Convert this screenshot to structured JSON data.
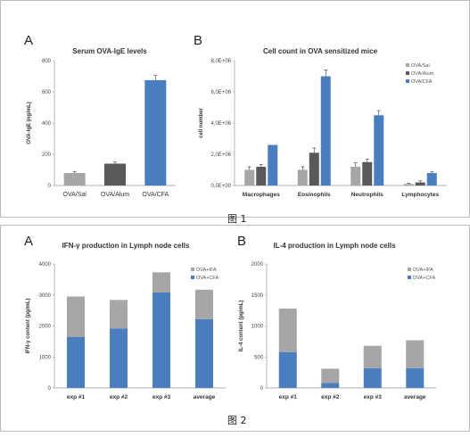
{
  "figure1": {
    "caption": "图 1",
    "panels": [
      {
        "label": "A"
      },
      {
        "label": "B"
      }
    ]
  },
  "figure2": {
    "caption": "图 2",
    "panels": [
      {
        "label": "A"
      },
      {
        "label": "B"
      }
    ]
  },
  "colors": {
    "gray_light": "#a6a6a6",
    "gray_dark": "#595959",
    "blue": "#4a7ebf"
  },
  "chart_data": [
    {
      "id": "fig1A",
      "type": "bar",
      "title": "Serum OVA-IgE levels",
      "ylabel": "OVA-IgE (ng/mL)",
      "xlabel": "",
      "ylim": [
        0,
        800
      ],
      "yticks": [
        0,
        200,
        400,
        600,
        800
      ],
      "ytick_labels": [
        "0",
        "200",
        "400",
        "600",
        "800"
      ],
      "categories": [
        "OVA/Sal",
        "OVA/Alum",
        "OVA/CFA"
      ],
      "values": [
        80,
        140,
        675
      ],
      "errors": [
        10,
        10,
        30
      ],
      "bar_colors": [
        "#a6a6a6",
        "#595959",
        "#4a7ebf"
      ]
    },
    {
      "id": "fig1B",
      "type": "bar",
      "title": "Cell count in OVA sensitized mice",
      "ylabel": "cell number",
      "xlabel": "",
      "ylim": [
        0,
        8000000
      ],
      "yticks": [
        0,
        2000000,
        4000000,
        6000000,
        8000000
      ],
      "ytick_labels": [
        "0,0E+00",
        "2,0E+06",
        "4,0E+06",
        "6,0E+06",
        "8,0E+06"
      ],
      "categories": [
        "Macrophages",
        "Eosinophils",
        "Neutrophils",
        "Lymphocytes"
      ],
      "series": [
        {
          "name": "OVA/Sal",
          "color": "#a6a6a6",
          "values": [
            1000000,
            1000000,
            1200000,
            100000
          ],
          "errors": [
            200000,
            200000,
            250000,
            50000
          ]
        },
        {
          "name": "OVA/Alum",
          "color": "#595959",
          "values": [
            1200000,
            2100000,
            1500000,
            200000
          ],
          "errors": [
            150000,
            300000,
            200000,
            100000
          ]
        },
        {
          "name": "OVA/CFA",
          "color": "#4a7ebf",
          "values": [
            2600000,
            7000000,
            4500000,
            800000
          ],
          "errors": [
            0,
            400000,
            300000,
            100000
          ]
        }
      ],
      "legend": "top-right"
    },
    {
      "id": "fig2A",
      "type": "bar",
      "stacked": true,
      "title": "IFN-γ production in Lymph node cells",
      "ylabel": "IFN-γ content (pg/mL)",
      "xlabel": "",
      "ylim": [
        0,
        4000
      ],
      "yticks": [
        0,
        1000,
        2000,
        3000,
        4000
      ],
      "ytick_labels": [
        "0",
        "1000",
        "2000",
        "3000",
        "4000"
      ],
      "categories": [
        "exp #1",
        "exp #2",
        "exp #3",
        "average"
      ],
      "series": [
        {
          "name": "OVA+CFA",
          "color": "#4a7ebf",
          "values": [
            1650,
            1920,
            3080,
            2220
          ]
        },
        {
          "name": "OVA+IFA",
          "color": "#a6a6a6",
          "values": [
            1300,
            920,
            650,
            950
          ]
        }
      ],
      "legend_order": [
        "OVA+IFA",
        "OVA+CFA"
      ],
      "legend": "top-right"
    },
    {
      "id": "fig2B",
      "type": "bar",
      "stacked": true,
      "title": "IL-4 production in Lymph node cells",
      "ylabel": "IL-4 content (pg/mL)",
      "xlabel": "",
      "ylim": [
        0,
        2000
      ],
      "yticks": [
        0,
        500,
        1000,
        1500,
        2000
      ],
      "ytick_labels": [
        "0",
        "500",
        "1000",
        "1500",
        "2000"
      ],
      "categories": [
        "exp #1",
        "exp #2",
        "exp #3",
        "average"
      ],
      "series": [
        {
          "name": "OVA+CFA",
          "color": "#4a7ebf",
          "values": [
            580,
            80,
            320,
            320
          ]
        },
        {
          "name": "OVA+IFA",
          "color": "#a6a6a6",
          "values": [
            700,
            230,
            360,
            450
          ]
        }
      ],
      "legend_order": [
        "OVA+IFA",
        "OVA+CFA"
      ],
      "legend": "top-right"
    }
  ]
}
